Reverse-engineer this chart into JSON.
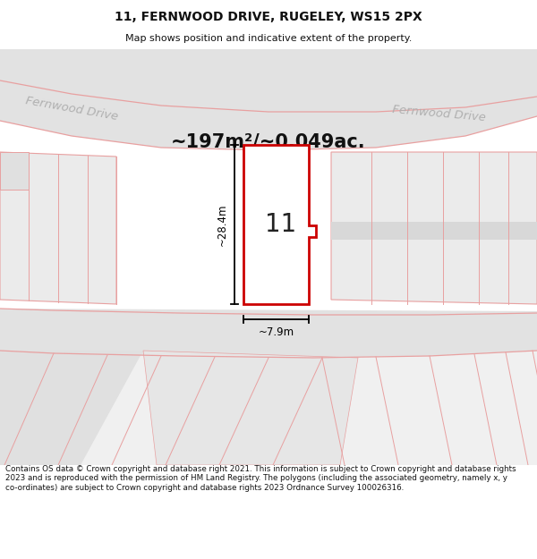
{
  "title": "11, FERNWOOD DRIVE, RUGELEY, WS15 2PX",
  "subtitle": "Map shows position and indicative extent of the property.",
  "area_label": "~197m²/~0.049ac.",
  "street_label_left": "Fernwood Drive",
  "street_label_right": "Fernwood Drive",
  "number_label": "11",
  "dim_height": "~28.4m",
  "dim_width": "~7.9m",
  "footer": "Contains OS data © Crown copyright and database right 2021. This information is subject to Crown copyright and database rights 2023 and is reproduced with the permission of HM Land Registry. The polygons (including the associated geometry, namely x, y co-ordinates) are subject to Crown copyright and database rights 2023 Ordnance Survey 100026316.",
  "bg_color": "#ffffff",
  "map_bg": "#f0f0f0",
  "road_fill": "#e2e2e2",
  "plot_line_color": "#cc0000",
  "other_line_color": "#e8a0a0",
  "dim_line_color": "#000000",
  "street_name_color": "#b0b0b0",
  "area_label_color": "#111111",
  "title_color": "#111111",
  "footer_color": "#111111"
}
